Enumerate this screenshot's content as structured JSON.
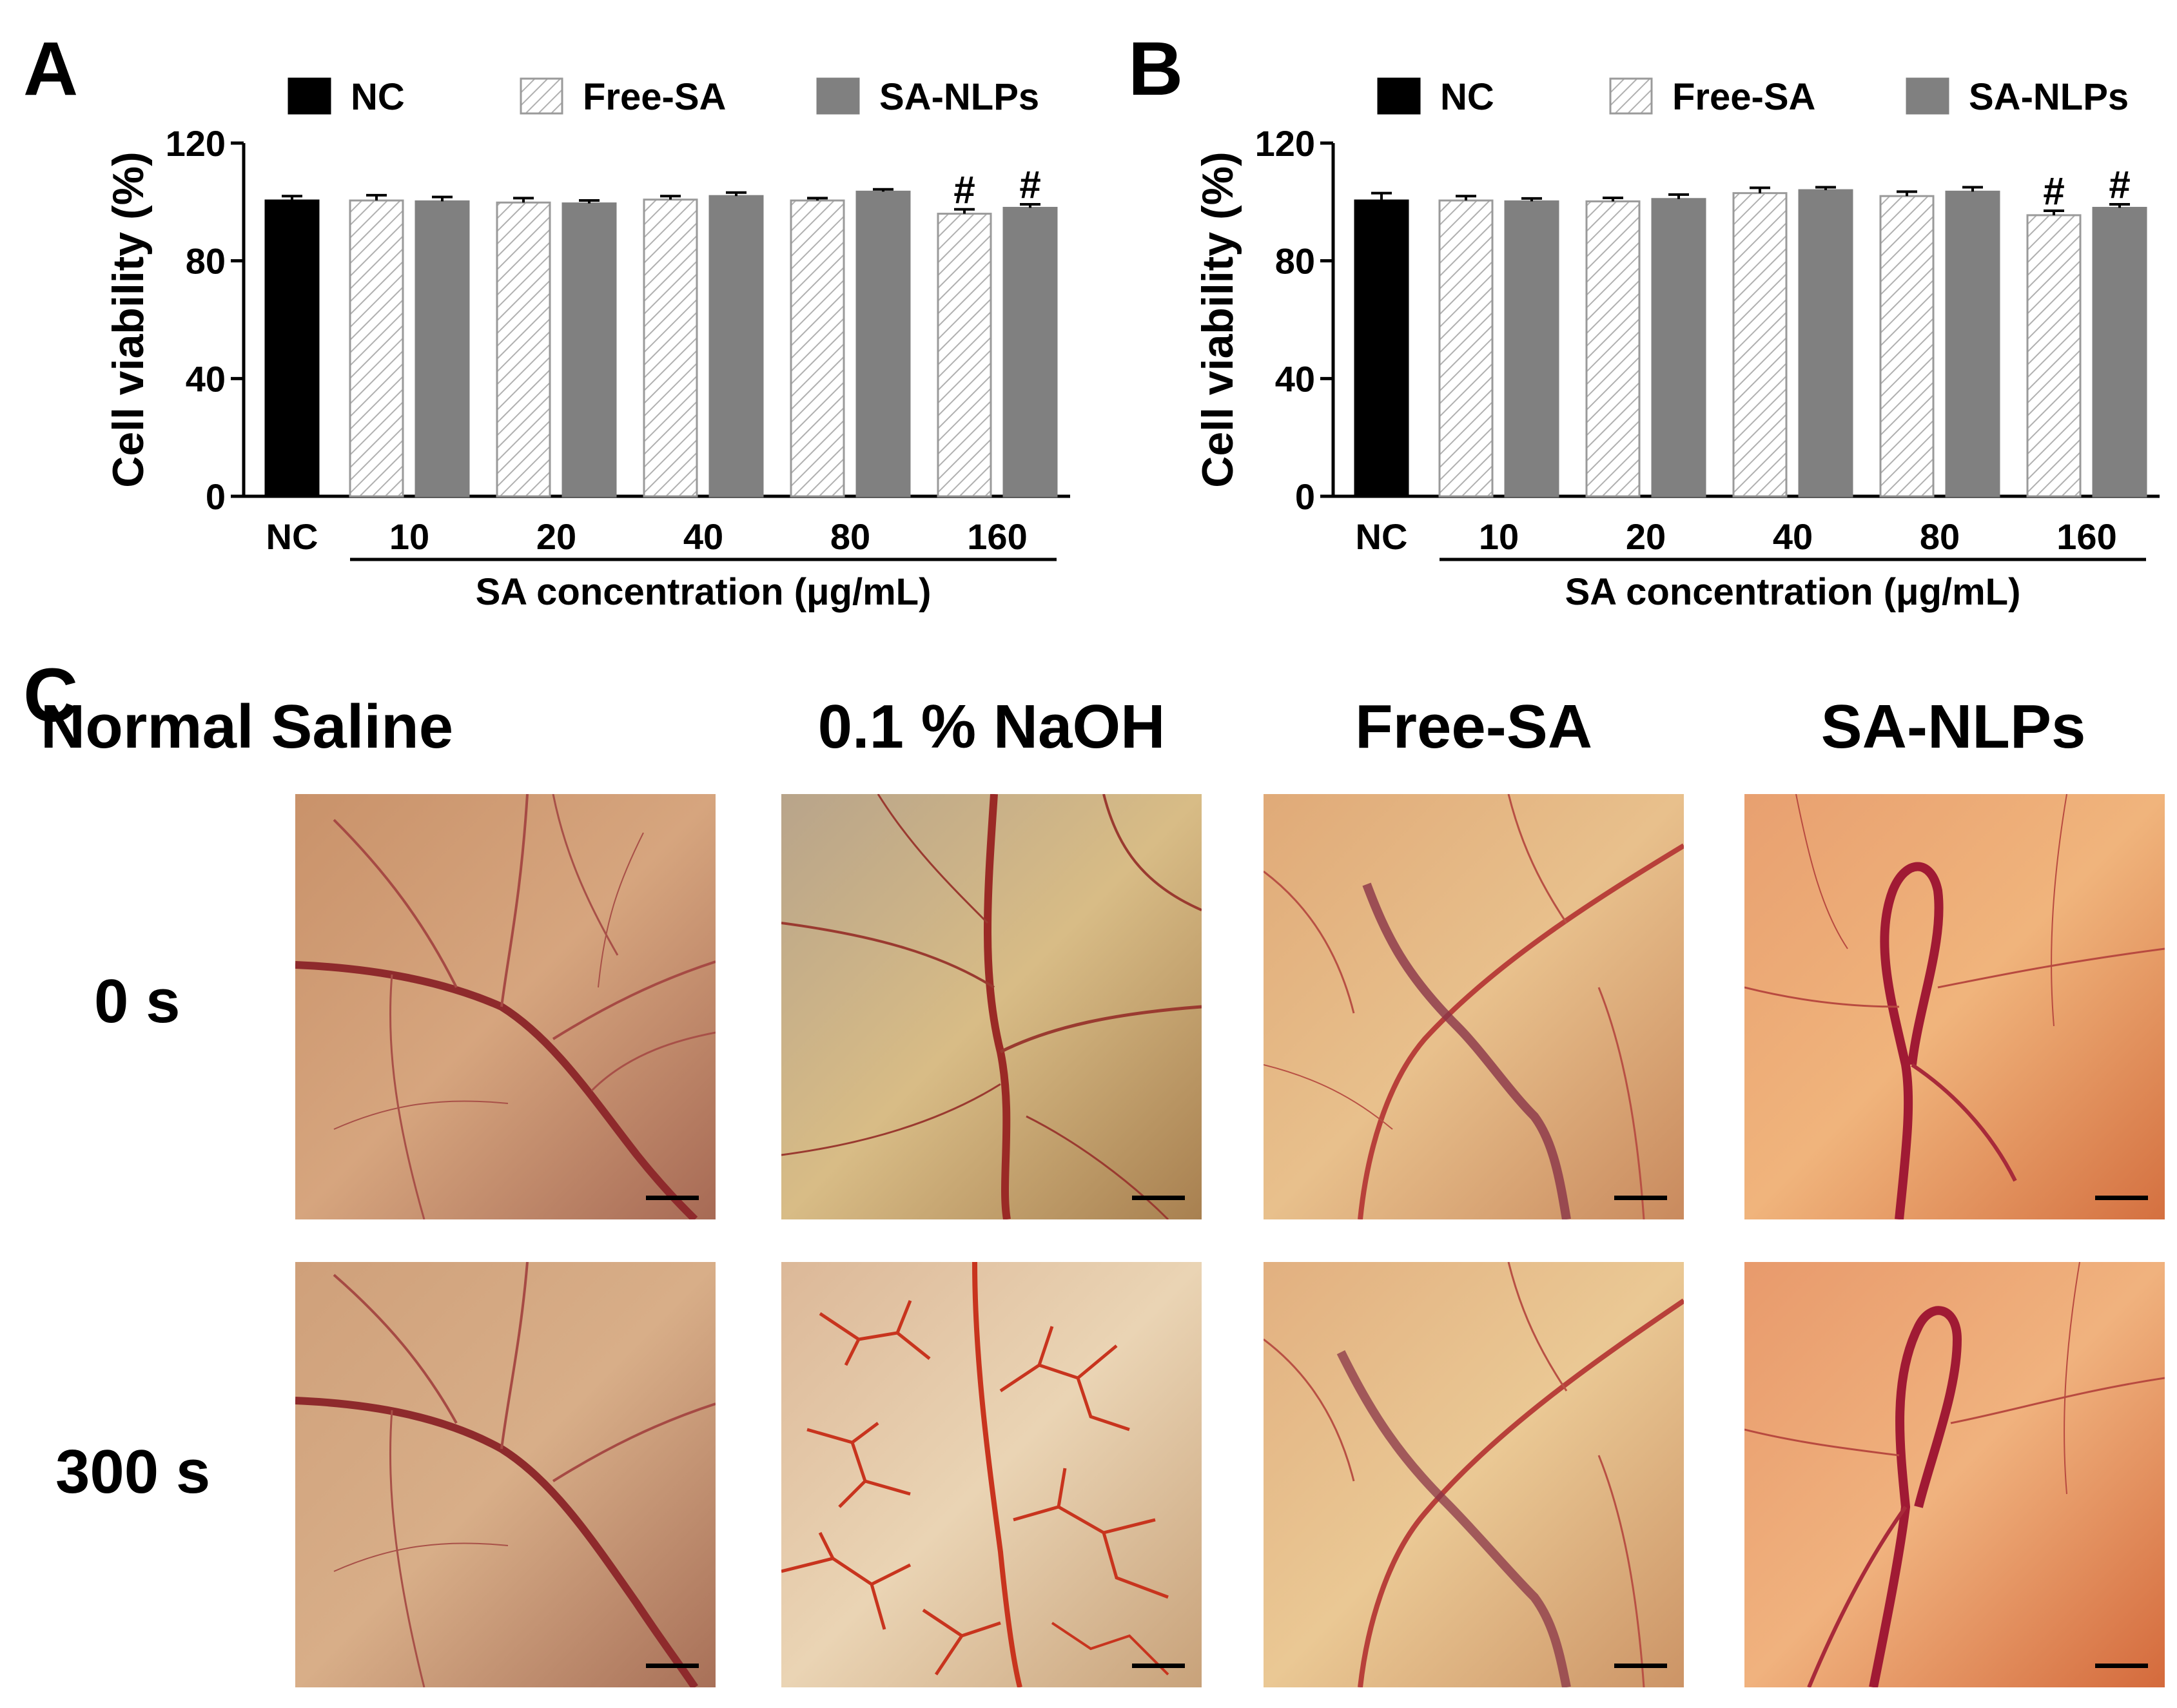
{
  "panels": {
    "a": {
      "letter": "A"
    },
    "b": {
      "letter": "B"
    },
    "c": {
      "letter": "C",
      "columns": [
        "Normal Saline",
        "0.1 % NaOH",
        "Free-SA",
        "SA-NLPs"
      ],
      "rows": [
        "0 s",
        "300 s"
      ]
    }
  },
  "chart_data": [
    {
      "panel": "A",
      "type": "bar",
      "ylabel": "Cell viability (%)",
      "xlabel": "SA concentration (μg/mL)",
      "ylim": [
        0,
        120
      ],
      "yticks": [
        0,
        40,
        80,
        120
      ],
      "legend": [
        "NC",
        "Free-SA",
        "SA-NLPs"
      ],
      "legend_position": "top",
      "colors": {
        "NC": "#000000",
        "Free-SA_hatch": "#b0b0b0",
        "SA-NLPs": "#808080"
      },
      "control": {
        "name": "NC",
        "label": "NC",
        "value": 100.5,
        "error": 1.5
      },
      "categories": [
        "10",
        "20",
        "40",
        "80",
        "160"
      ],
      "series": [
        {
          "name": "Free-SA",
          "values": [
            100.5,
            99.8,
            100.8,
            100.5,
            96.0
          ],
          "errors": [
            1.8,
            1.5,
            1.2,
            0.8,
            1.5
          ]
        },
        {
          "name": "SA-NLPs",
          "values": [
            100.2,
            99.5,
            102.0,
            103.5,
            98.0
          ],
          "errors": [
            1.5,
            1.0,
            1.2,
            0.8,
            1.2
          ]
        }
      ],
      "annotations": [
        {
          "series": "Free-SA",
          "category": "160",
          "text": "#"
        },
        {
          "series": "SA-NLPs",
          "category": "160",
          "text": "#"
        }
      ]
    },
    {
      "panel": "B",
      "type": "bar",
      "ylabel": "Cell viability (%)",
      "xlabel": "SA concentration (μg/mL)",
      "ylim": [
        0,
        120
      ],
      "yticks": [
        0,
        40,
        80,
        120
      ],
      "legend": [
        "NC",
        "Free-SA",
        "SA-NLPs"
      ],
      "legend_position": "top",
      "colors": {
        "NC": "#000000",
        "Free-SA_hatch": "#b0b0b0",
        "SA-NLPs": "#808080"
      },
      "control": {
        "name": "NC",
        "label": "NC",
        "value": 100.5,
        "error": 2.5
      },
      "categories": [
        "10",
        "20",
        "40",
        "80",
        "160"
      ],
      "series": [
        {
          "name": "Free-SA",
          "values": [
            100.5,
            100.2,
            103.0,
            102.0,
            95.5
          ],
          "errors": [
            1.5,
            1.2,
            1.8,
            1.5,
            1.5
          ]
        },
        {
          "name": "SA-NLPs",
          "values": [
            100.2,
            101.0,
            104.0,
            103.5,
            98.0
          ],
          "errors": [
            1.0,
            1.5,
            1.0,
            1.5,
            1.2
          ]
        }
      ],
      "annotations": [
        {
          "series": "Free-SA",
          "category": "160",
          "text": "#"
        },
        {
          "series": "SA-NLPs",
          "category": "160",
          "text": "#"
        }
      ]
    }
  ]
}
